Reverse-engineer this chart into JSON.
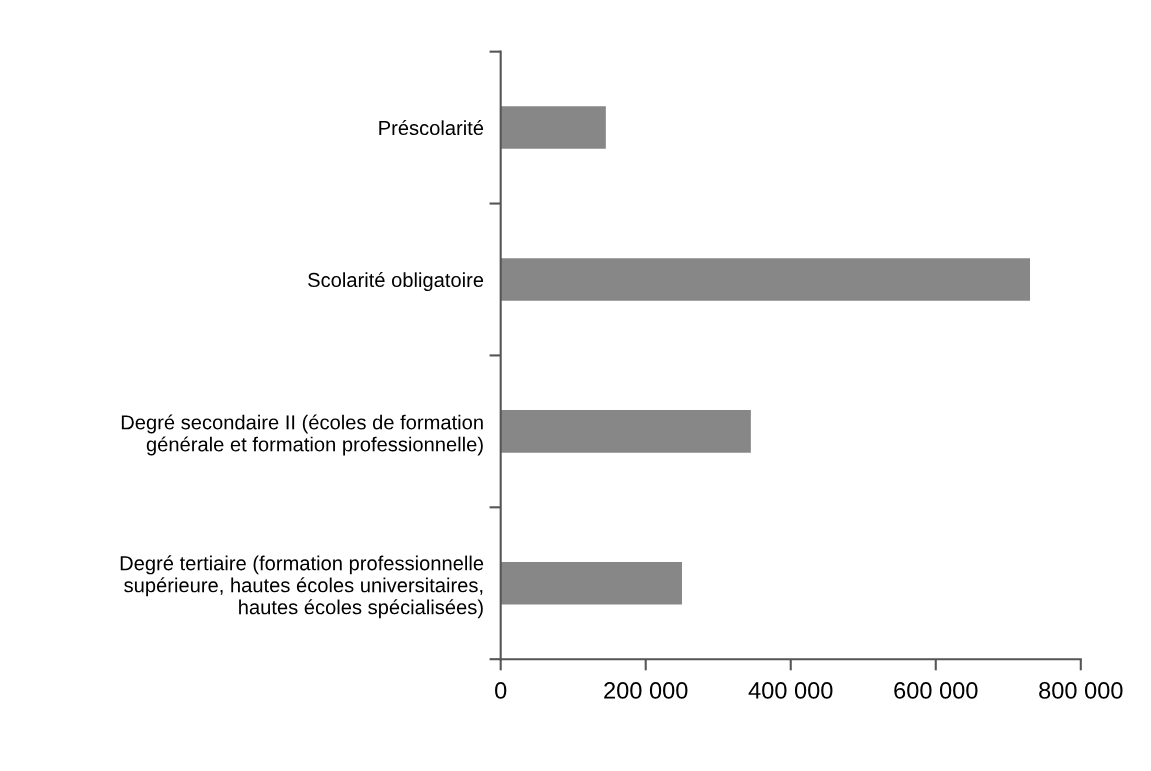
{
  "chart_data": {
    "type": "bar",
    "orientation": "horizontal",
    "categories": [
      "Préscolarité",
      "Scolarité obligatoire",
      "Degré secondaire II (écoles de formation\ngénérale et formation professionnelle)",
      "Degré tertiaire (formation professionnelle\nsupérieure, hautes écoles universitaires,\nhautes écoles spécialisées)"
    ],
    "values": [
      145000,
      730000,
      345000,
      250000
    ],
    "color": "#878787",
    "xlim": [
      0,
      800000
    ],
    "xticks": [
      {
        "value": 0,
        "label": "0"
      },
      {
        "value": 200000,
        "label": "200 000"
      },
      {
        "value": 400000,
        "label": "400 000"
      },
      {
        "value": 600000,
        "label": "600 000"
      },
      {
        "value": 800000,
        "label": "800 000"
      }
    ],
    "grid": false,
    "legend": false
  }
}
